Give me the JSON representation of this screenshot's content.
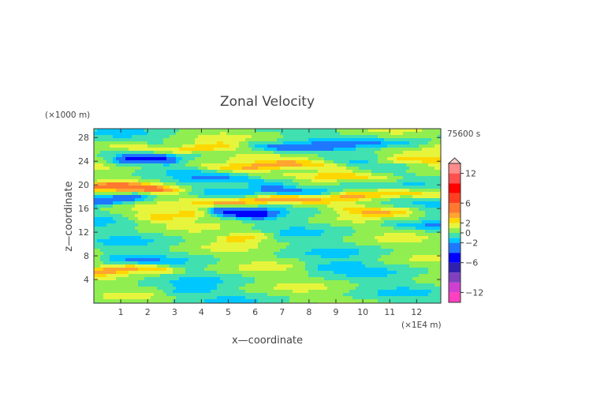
{
  "chart_data": {
    "type": "heatmap",
    "title": "Zonal Velocity",
    "xlabel": "x—coordinate",
    "ylabel": "z—coordinate",
    "x_unit": "(×1E4 m)",
    "y_unit": "(×1000 m)",
    "time_label": "75600 s",
    "xlim": [
      0,
      12.9
    ],
    "ylim": [
      0,
      29.5
    ],
    "x_ticks": [
      1,
      2,
      3,
      4,
      5,
      6,
      7,
      8,
      9,
      10,
      11,
      12
    ],
    "y_ticks": [
      4,
      8,
      12,
      16,
      20,
      24,
      28
    ],
    "colorbar": {
      "tick_labels": [
        "12",
        "6",
        "2",
        "0",
        "−2",
        "−6",
        "−12"
      ],
      "tick_values": [
        12,
        6,
        2,
        0,
        -2,
        -6,
        -12
      ],
      "range": [
        -14,
        14
      ],
      "colors": [
        {
          "v": -14,
          "c": "#ff40c0"
        },
        {
          "v": -12,
          "c": "#d040d0"
        },
        {
          "v": -10,
          "c": "#8040c0"
        },
        {
          "v": -8,
          "c": "#3020b0"
        },
        {
          "v": -6,
          "c": "#0000ff"
        },
        {
          "v": -4,
          "c": "#1e78ff"
        },
        {
          "v": -2,
          "c": "#00c8ff"
        },
        {
          "v": -1,
          "c": "#40e0b0"
        },
        {
          "v": 0,
          "c": "#90ee50"
        },
        {
          "v": 1,
          "c": "#e6f53c"
        },
        {
          "v": 2,
          "c": "#ffd700"
        },
        {
          "v": 3,
          "c": "#ffa530"
        },
        {
          "v": 4,
          "c": "#ff7830"
        },
        {
          "v": 6,
          "c": "#ff4020"
        },
        {
          "v": 8,
          "c": "#ff0000"
        },
        {
          "v": 10,
          "c": "#ff5050"
        },
        {
          "v": 12,
          "c": "#ff8c8c"
        },
        {
          "v": 14,
          "c": "#ffb8b8"
        }
      ]
    },
    "bands": [
      {
        "z": 26.2,
        "amp": 3.0,
        "x0": 1.2,
        "x1": 4.8
      },
      {
        "z": 26.5,
        "amp": -2.5,
        "x0": 6.2,
        "x1": 9.5
      },
      {
        "z": 27.2,
        "amp": -1.8,
        "x0": 10.5,
        "x1": 12.0
      },
      {
        "z": 24.1,
        "amp": -4.5,
        "x0": 1.2,
        "x1": 2.6
      },
      {
        "z": 24.0,
        "amp": 2.6,
        "x0": 11.0,
        "x1": 12.9
      },
      {
        "z": 23.2,
        "amp": 3.2,
        "x0": 4.2,
        "x1": 9.2
      },
      {
        "z": 21.2,
        "amp": 2.4,
        "x0": 8.6,
        "x1": 11.0
      },
      {
        "z": 20.8,
        "amp": -1.8,
        "x0": 3.5,
        "x1": 7.5
      },
      {
        "z": 19.4,
        "amp": 4.2,
        "x0": 0.0,
        "x1": 2.8
      },
      {
        "z": 19.0,
        "amp": -3.0,
        "x0": 6.6,
        "x1": 8.6
      },
      {
        "z": 18.3,
        "amp": 2.6,
        "x0": 9.0,
        "x1": 12.9
      },
      {
        "z": 17.6,
        "amp": -3.6,
        "x0": 0.0,
        "x1": 1.6
      },
      {
        "z": 17.3,
        "amp": 3.6,
        "x0": 4.0,
        "x1": 8.0
      },
      {
        "z": 15.4,
        "amp": -4.6,
        "x0": 4.8,
        "x1": 6.2
      },
      {
        "z": 15.8,
        "amp": 2.6,
        "x0": 9.5,
        "x1": 11.5
      },
      {
        "z": 14.8,
        "amp": 2.2,
        "x0": 1.8,
        "x1": 4.0
      },
      {
        "z": 13.4,
        "amp": -1.6,
        "x0": 11.0,
        "x1": 12.9
      },
      {
        "z": 11.2,
        "amp": 2.4,
        "x0": 5.2,
        "x1": 6.2
      },
      {
        "z": 7.5,
        "amp": -1.6,
        "x0": 0.8,
        "x1": 2.0
      },
      {
        "z": 6.5,
        "amp": -1.4,
        "x0": 8.3,
        "x1": 9.6
      },
      {
        "z": 5.6,
        "amp": 3.4,
        "x0": 0.3,
        "x1": 2.6
      },
      {
        "z": 2.0,
        "amp": -1.4,
        "x0": 3.0,
        "x1": 4.0
      }
    ]
  }
}
